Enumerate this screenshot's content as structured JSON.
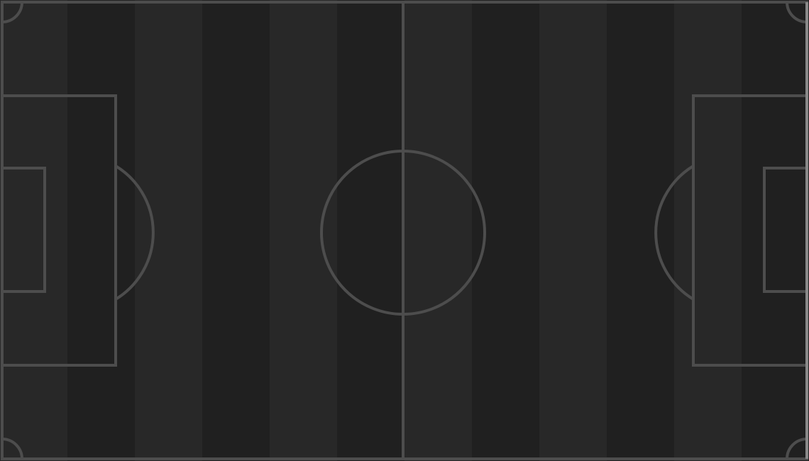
{
  "pitch": {
    "stripe_colors": [
      "#282828",
      "#202020"
    ],
    "line_color": "#4d4d4d",
    "border_right_color": "#8a8a8a",
    "stripe_count": 12
  }
}
